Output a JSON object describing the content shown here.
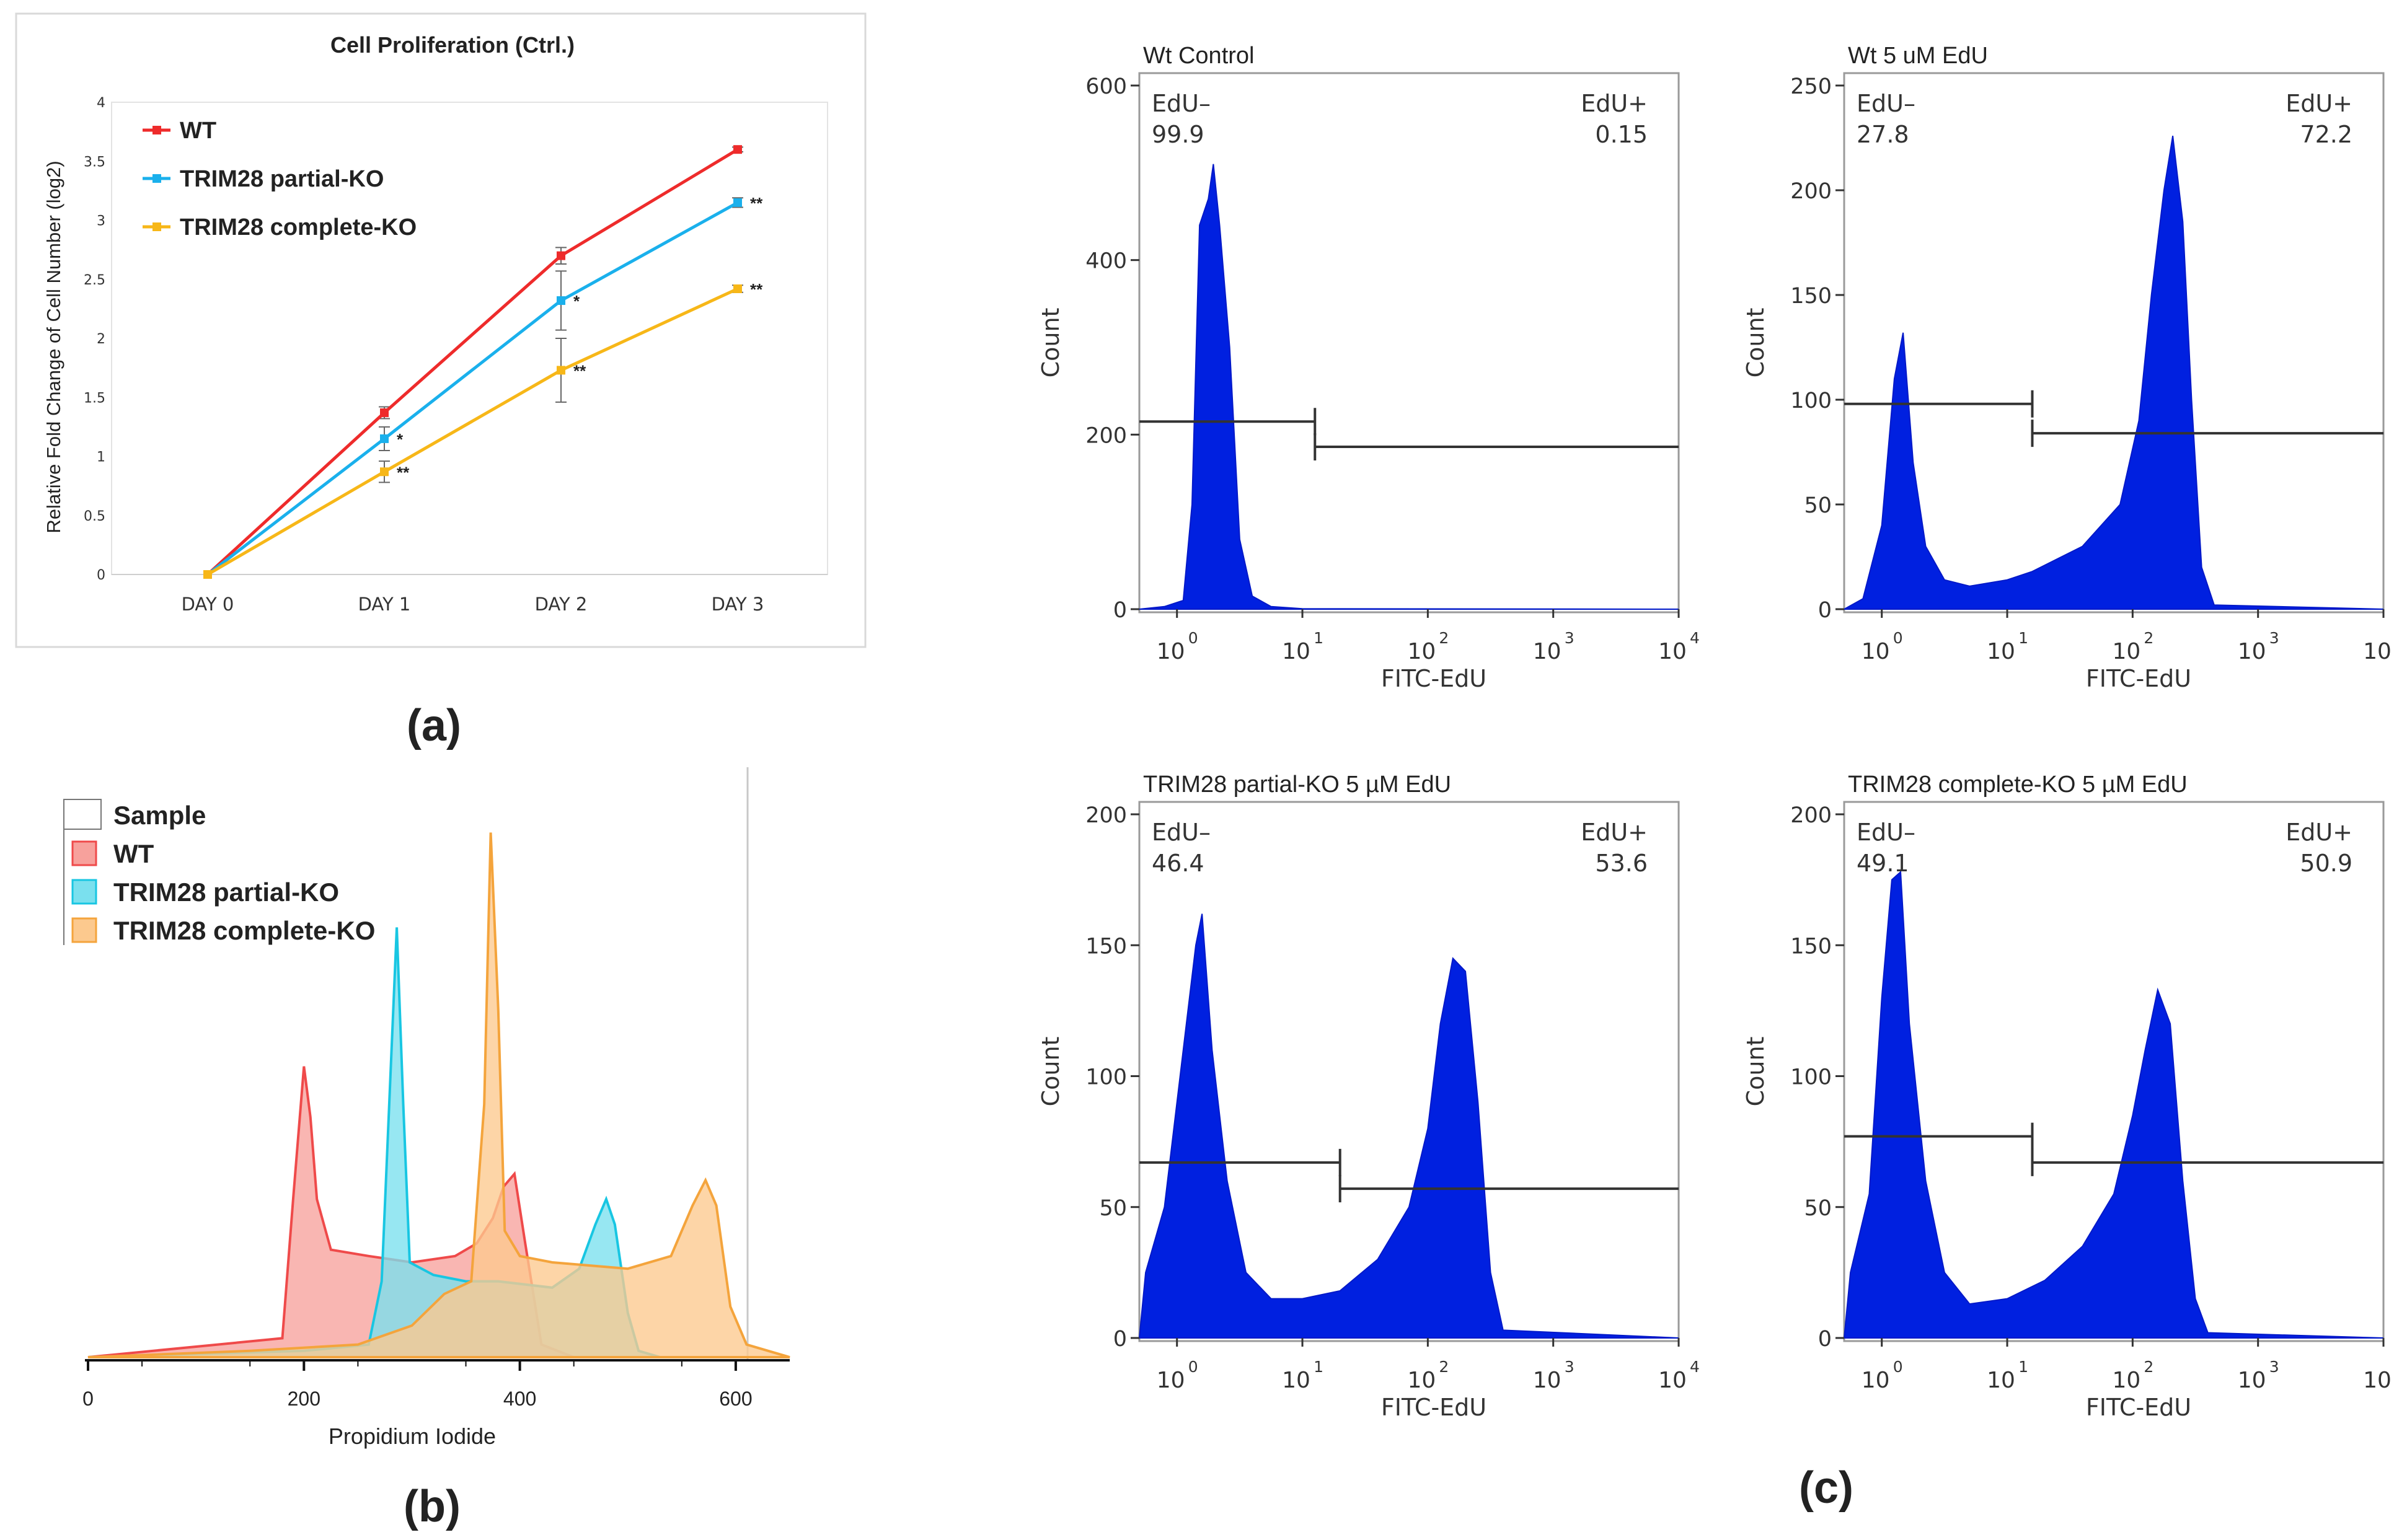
{
  "panel_labels": {
    "a": "(a)",
    "b": "(b)",
    "c": "(c)"
  },
  "chart_data": [
    {
      "id": "a",
      "type": "line",
      "title": "Cell Proliferation  (Ctrl.)",
      "xlabel": "",
      "ylabel": "Relative Fold Change of Cell Number (log2)",
      "categories": [
        "DAY 0",
        "DAY 1",
        "DAY 2",
        "DAY 3"
      ],
      "ylim": [
        0,
        4
      ],
      "yticks": [
        "0",
        "0.5",
        "1",
        "1.5",
        "2",
        "2.5",
        "3",
        "3.5",
        "4"
      ],
      "series": [
        {
          "name": "WT",
          "color": "#ee2b2b",
          "values": [
            0,
            1.37,
            2.7,
            3.6
          ],
          "errors": [
            0,
            0.05,
            0.07,
            0.02
          ],
          "sig": [
            "",
            "",
            "",
            ""
          ]
        },
        {
          "name": "TRIM28 partial-KO",
          "color": "#1ab0ec",
          "values": [
            0,
            1.15,
            2.32,
            3.15
          ],
          "errors": [
            0,
            0.1,
            0.25,
            0.04
          ],
          "sig": [
            "",
            "*",
            "*",
            "**"
          ]
        },
        {
          "name": "TRIM28 complete-KO",
          "color": "#f7b718",
          "values": [
            0,
            0.87,
            1.73,
            2.42
          ],
          "errors": [
            0,
            0.09,
            0.27,
            0.03
          ],
          "sig": [
            "",
            "**",
            "**",
            "**"
          ]
        }
      ]
    },
    {
      "id": "b",
      "type": "area",
      "title": "",
      "xlabel": "Propidium Iodide",
      "ylabel": "",
      "xlim": [
        0,
        650
      ],
      "xticks": [
        "0",
        "200",
        "400",
        "600"
      ],
      "legend_title": "Sample",
      "series": [
        {
          "name": "WT",
          "fill": "#f7a19c",
          "stroke": "#ef4a4a",
          "points": [
            [
              0,
              0
            ],
            [
              180,
              3
            ],
            [
              190,
              25
            ],
            [
              200,
              46
            ],
            [
              206,
              38
            ],
            [
              212,
              25
            ],
            [
              225,
              17
            ],
            [
              260,
              16
            ],
            [
              300,
              15
            ],
            [
              340,
              16
            ],
            [
              360,
              18
            ],
            [
              375,
              22
            ],
            [
              385,
              27
            ],
            [
              395,
              29
            ],
            [
              405,
              18
            ],
            [
              420,
              2
            ],
            [
              450,
              0
            ],
            [
              650,
              0
            ]
          ]
        },
        {
          "name": "TRIM28 partial-KO",
          "fill": "#7ae0ee",
          "stroke": "#18c6e2",
          "points": [
            [
              0,
              0
            ],
            [
              200,
              1
            ],
            [
              260,
              2
            ],
            [
              272,
              12
            ],
            [
              280,
              44
            ],
            [
              286,
              68
            ],
            [
              292,
              40
            ],
            [
              298,
              15
            ],
            [
              320,
              13
            ],
            [
              350,
              12
            ],
            [
              380,
              12
            ],
            [
              430,
              11
            ],
            [
              455,
              14
            ],
            [
              470,
              21
            ],
            [
              480,
              25
            ],
            [
              488,
              21
            ],
            [
              500,
              7
            ],
            [
              510,
              1
            ],
            [
              530,
              0
            ],
            [
              650,
              0
            ]
          ]
        },
        {
          "name": "TRIM28 complete-KO",
          "fill": "#fcc98e",
          "stroke": "#f4a43c",
          "points": [
            [
              0,
              0
            ],
            [
              150,
              1
            ],
            [
              250,
              2
            ],
            [
              300,
              5
            ],
            [
              330,
              10
            ],
            [
              355,
              12
            ],
            [
              367,
              40
            ],
            [
              373,
              83
            ],
            [
              380,
              55
            ],
            [
              386,
              20
            ],
            [
              400,
              16
            ],
            [
              430,
              15
            ],
            [
              500,
              14
            ],
            [
              540,
              16
            ],
            [
              560,
              24
            ],
            [
              572,
              28
            ],
            [
              582,
              24
            ],
            [
              595,
              8
            ],
            [
              610,
              2
            ],
            [
              650,
              0
            ]
          ]
        }
      ]
    },
    {
      "id": "c1",
      "type": "area",
      "title": "Wt Control",
      "xlabel": "FITC-EdU",
      "ylabel": "Count",
      "ylim": [
        0,
        600
      ],
      "yticks": [
        "0",
        "200",
        "400",
        "600"
      ],
      "xlim_log": [
        -0.3,
        4
      ],
      "gate_left": {
        "label": "EdU–",
        "value": "99.9"
      },
      "gate_right": {
        "label": "EdU+",
        "value": "0.15"
      },
      "gates": [
        {
          "x0": -0.3,
          "x1": 1.1,
          "y": 215
        },
        {
          "x0": 1.1,
          "x1": 4,
          "y": 186
        }
      ],
      "hist": [
        [
          -0.3,
          0
        ],
        [
          -0.1,
          3
        ],
        [
          0.05,
          10
        ],
        [
          0.12,
          120
        ],
        [
          0.18,
          440
        ],
        [
          0.25,
          470
        ],
        [
          0.29,
          510
        ],
        [
          0.34,
          440
        ],
        [
          0.42,
          300
        ],
        [
          0.5,
          80
        ],
        [
          0.6,
          15
        ],
        [
          0.75,
          3
        ],
        [
          1.0,
          0.5
        ],
        [
          4,
          0
        ]
      ]
    },
    {
      "id": "c2",
      "type": "area",
      "title": "Wt 5  uM EdU",
      "xlabel": "FITC-EdU",
      "ylabel": "Count",
      "ylim": [
        0,
        250
      ],
      "yticks": [
        "0",
        "50",
        "100",
        "150",
        "200",
        "250"
      ],
      "xlim_log": [
        -0.3,
        4
      ],
      "gate_left": {
        "label": "EdU–",
        "value": "27.8"
      },
      "gate_right": {
        "label": "EdU+",
        "value": "72.2"
      },
      "gates": [
        {
          "x0": -0.3,
          "x1": 1.2,
          "y": 98
        },
        {
          "x0": 1.2,
          "x1": 4,
          "y": 84
        }
      ],
      "hist": [
        [
          -0.3,
          0
        ],
        [
          -0.15,
          5
        ],
        [
          0.0,
          40
        ],
        [
          0.1,
          110
        ],
        [
          0.17,
          132
        ],
        [
          0.25,
          70
        ],
        [
          0.35,
          30
        ],
        [
          0.5,
          14
        ],
        [
          0.7,
          11
        ],
        [
          1.0,
          14
        ],
        [
          1.2,
          18
        ],
        [
          1.6,
          30
        ],
        [
          1.9,
          50
        ],
        [
          2.05,
          90
        ],
        [
          2.15,
          150
        ],
        [
          2.25,
          200
        ],
        [
          2.32,
          226
        ],
        [
          2.4,
          185
        ],
        [
          2.47,
          100
        ],
        [
          2.55,
          20
        ],
        [
          2.65,
          2
        ],
        [
          4,
          0
        ]
      ]
    },
    {
      "id": "c3",
      "type": "area",
      "title": "TRIM28  partial-KO 5 µM EdU",
      "xlabel": "FITC-EdU",
      "ylabel": "Count",
      "ylim": [
        0,
        200
      ],
      "yticks": [
        "0",
        "50",
        "100",
        "150",
        "200"
      ],
      "xlim_log": [
        -0.3,
        4
      ],
      "gate_left": {
        "label": "EdU–",
        "value": "46.4"
      },
      "gate_right": {
        "label": "EdU+",
        "value": "53.6"
      },
      "gates": [
        {
          "x0": -0.3,
          "x1": 1.3,
          "y": 67
        },
        {
          "x0": 1.3,
          "x1": 4,
          "y": 57
        }
      ],
      "hist": [
        [
          -0.3,
          0
        ],
        [
          -0.25,
          25
        ],
        [
          -0.1,
          50
        ],
        [
          0.05,
          110
        ],
        [
          0.15,
          150
        ],
        [
          0.2,
          162
        ],
        [
          0.28,
          110
        ],
        [
          0.4,
          60
        ],
        [
          0.55,
          25
        ],
        [
          0.75,
          15
        ],
        [
          1.0,
          15
        ],
        [
          1.3,
          18
        ],
        [
          1.6,
          30
        ],
        [
          1.85,
          50
        ],
        [
          2.0,
          80
        ],
        [
          2.1,
          120
        ],
        [
          2.2,
          145
        ],
        [
          2.3,
          140
        ],
        [
          2.4,
          90
        ],
        [
          2.5,
          25
        ],
        [
          2.6,
          3
        ],
        [
          4,
          0
        ]
      ]
    },
    {
      "id": "c4",
      "type": "area",
      "title": "TRIM28  complete-KO 5 µM EdU",
      "xlabel": "FITC-EdU",
      "ylabel": "Count",
      "ylim": [
        0,
        200
      ],
      "yticks": [
        "0",
        "50",
        "100",
        "150",
        "200"
      ],
      "xlim_log": [
        -0.3,
        4
      ],
      "gate_left": {
        "label": "EdU–",
        "value": "49.1"
      },
      "gate_right": {
        "label": "EdU+",
        "value": "50.9"
      },
      "gates": [
        {
          "x0": -0.3,
          "x1": 1.2,
          "y": 77
        },
        {
          "x0": 1.2,
          "x1": 4,
          "y": 67
        }
      ],
      "hist": [
        [
          -0.3,
          0
        ],
        [
          -0.25,
          25
        ],
        [
          -0.1,
          55
        ],
        [
          0.0,
          130
        ],
        [
          0.08,
          175
        ],
        [
          0.15,
          178
        ],
        [
          0.22,
          120
        ],
        [
          0.35,
          60
        ],
        [
          0.5,
          25
        ],
        [
          0.7,
          13
        ],
        [
          1.0,
          15
        ],
        [
          1.3,
          22
        ],
        [
          1.6,
          35
        ],
        [
          1.85,
          55
        ],
        [
          2.0,
          85
        ],
        [
          2.1,
          110
        ],
        [
          2.2,
          133
        ],
        [
          2.3,
          120
        ],
        [
          2.4,
          60
        ],
        [
          2.5,
          15
        ],
        [
          2.6,
          2
        ],
        [
          4,
          0
        ]
      ]
    }
  ]
}
